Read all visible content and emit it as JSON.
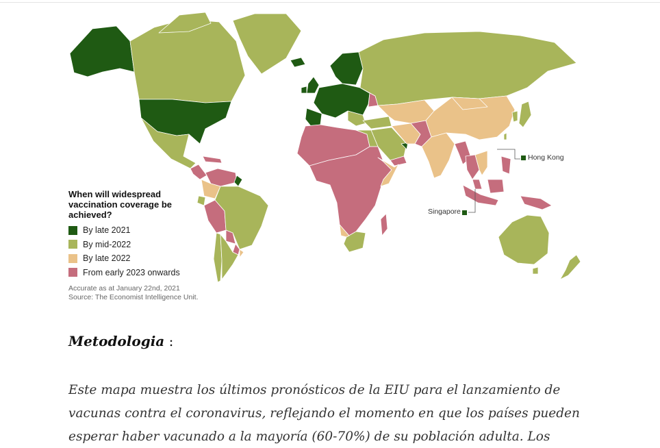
{
  "map": {
    "legend": {
      "title": "When will widespread vaccination coverage be achieved?",
      "items": [
        {
          "label": "By late 2021",
          "color": "#1f5a13"
        },
        {
          "label": "By mid-2022",
          "color": "#a8b55a"
        },
        {
          "label": "By late 2022",
          "color": "#eac289"
        },
        {
          "label": "From early 2023 onwards",
          "color": "#c56d7d"
        }
      ],
      "note_accuracy": "Accurate as at January 22nd, 2021",
      "note_source": "Source: The Economist Intelligence Unit."
    },
    "callouts": {
      "hong_kong": "Hong Kong",
      "singapore": "Singapore"
    }
  },
  "article": {
    "heading": "Metodologia",
    "heading_suffix": " :",
    "lines": [
      "Este mapa muestra los últimos pronósticos de la EIU para el lanzamiento de",
      "vacunas contra el coronavirus, reflejando el momento en que los países pueden",
      "esperar haber vacunado a la mayoría (60-70%) de su población adulta. Los"
    ]
  }
}
